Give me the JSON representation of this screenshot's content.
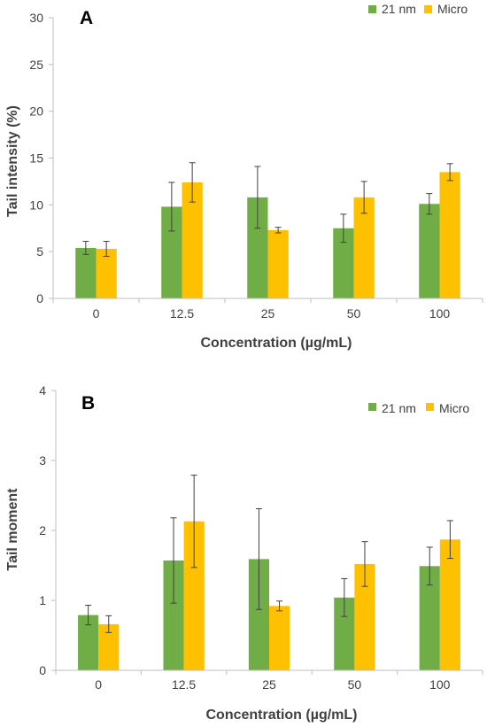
{
  "chart_data": [
    {
      "type": "bar",
      "panel_label": "A",
      "categories": [
        "0",
        "12.5",
        "25",
        "50",
        "100"
      ],
      "series": [
        {
          "name": "21 nm",
          "values": [
            5.4,
            9.8,
            10.8,
            7.5,
            10.1
          ],
          "errors": [
            0.7,
            2.6,
            3.3,
            1.5,
            1.1
          ]
        },
        {
          "name": "Micro",
          "values": [
            5.3,
            12.4,
            7.3,
            10.8,
            13.5
          ],
          "errors": [
            0.8,
            2.1,
            0.3,
            1.7,
            0.9
          ]
        }
      ],
      "xlabel": "Concentration (µg/mL)",
      "ylabel": "Tail intensity (%)",
      "ylim": [
        0,
        30
      ],
      "yticks": [
        0,
        5,
        10,
        15,
        20,
        25,
        30
      ],
      "grid": false,
      "legend_position": "top-right",
      "colors": [
        "#70AD47",
        "#FFC000"
      ]
    },
    {
      "type": "bar",
      "panel_label": "B",
      "categories": [
        "0",
        "12.5",
        "25",
        "50",
        "100"
      ],
      "series": [
        {
          "name": "21 nm",
          "values": [
            0.79,
            1.57,
            1.59,
            1.04,
            1.49
          ],
          "errors": [
            0.14,
            0.61,
            0.72,
            0.27,
            0.27
          ]
        },
        {
          "name": "Micro",
          "values": [
            0.66,
            2.13,
            0.92,
            1.52,
            1.87
          ],
          "errors": [
            0.12,
            0.66,
            0.07,
            0.32,
            0.27
          ]
        }
      ],
      "xlabel": "Concentration (µg/mL)",
      "ylabel": "Tail moment",
      "ylim": [
        0,
        4
      ],
      "yticks": [
        0,
        1,
        2,
        3,
        4
      ],
      "grid": false,
      "legend_position": "top-right",
      "colors": [
        "#70AD47",
        "#FFC000"
      ]
    }
  ]
}
